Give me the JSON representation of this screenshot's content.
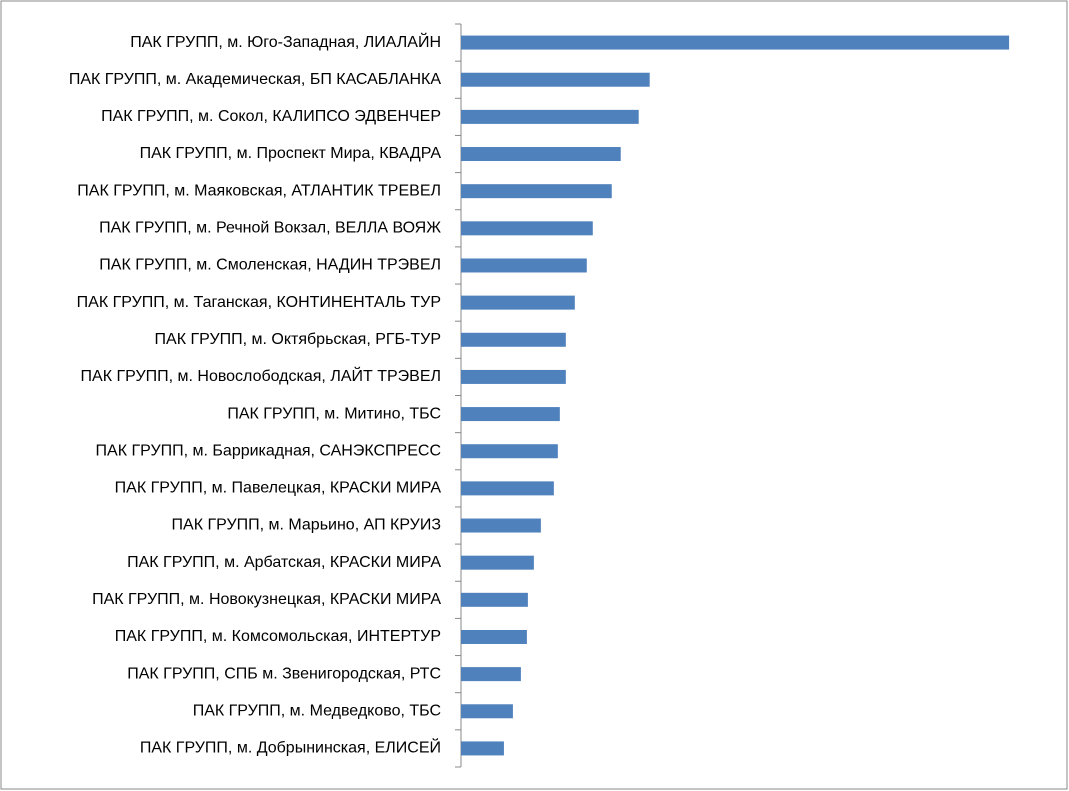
{
  "chart_data": {
    "type": "bar",
    "orientation": "horizontal",
    "color": "#4f81bd",
    "categories": [
      "ПАК ГРУПП, м. Юго-Западная, ЛИАЛАЙН",
      "ПАК ГРУПП, м. Академическая, БП КАСАБЛАНКА",
      "ПАК ГРУПП, м. Сокол, КАЛИПСО ЭДВЕНЧЕР",
      "ПАК ГРУПП, м. Проспект Мира, КВАДРА",
      "ПАК ГРУПП, м. Маяковская, АТЛАНТИК ТРЕВЕЛ",
      "ПАК ГРУПП, м. Речной Вокзал, ВЕЛЛА ВОЯЖ",
      "ПАК ГРУПП, м. Смоленская, НАДИН ТРЭВЕЛ",
      "ПАК ГРУПП, м. Таганская, КОНТИНЕНТАЛЬ ТУР",
      "ПАК ГРУПП, м. Октябрьская, РГБ-ТУР",
      "ПАК ГРУПП, м. Новослободская, ЛАЙТ ТРЭВЕЛ",
      "ПАК ГРУПП, м. Митино, ТБС",
      "ПАК ГРУПП, м. Баррикадная, САНЭКСПРЕСС",
      "ПАК ГРУПП, м. Павелецкая, КРАСКИ МИРА",
      "ПАК ГРУПП, м. Марьино, АП КРУИЗ",
      "ПАК ГРУПП, м. Арбатская, КРАСКИ МИРА",
      "ПАК ГРУПП, м. Новокузнецкая, КРАСКИ МИРА",
      "ПАК ГРУПП, м. Комсомольская, ИНТЕРТУР",
      "ПАК ГРУПП, СПБ м. Звенигородская, РТС",
      "ПАК ГРУПП, м. Медведково, ТБС",
      "ПАК ГРУПП, м. Добрынинская, ЕЛИСЕЙ"
    ],
    "values": [
      549,
      189,
      178,
      160,
      151,
      132,
      126,
      114,
      105,
      105,
      99,
      97,
      93,
      80,
      73,
      67,
      66,
      60,
      52,
      43
    ],
    "xlim": [
      0,
      600
    ]
  }
}
